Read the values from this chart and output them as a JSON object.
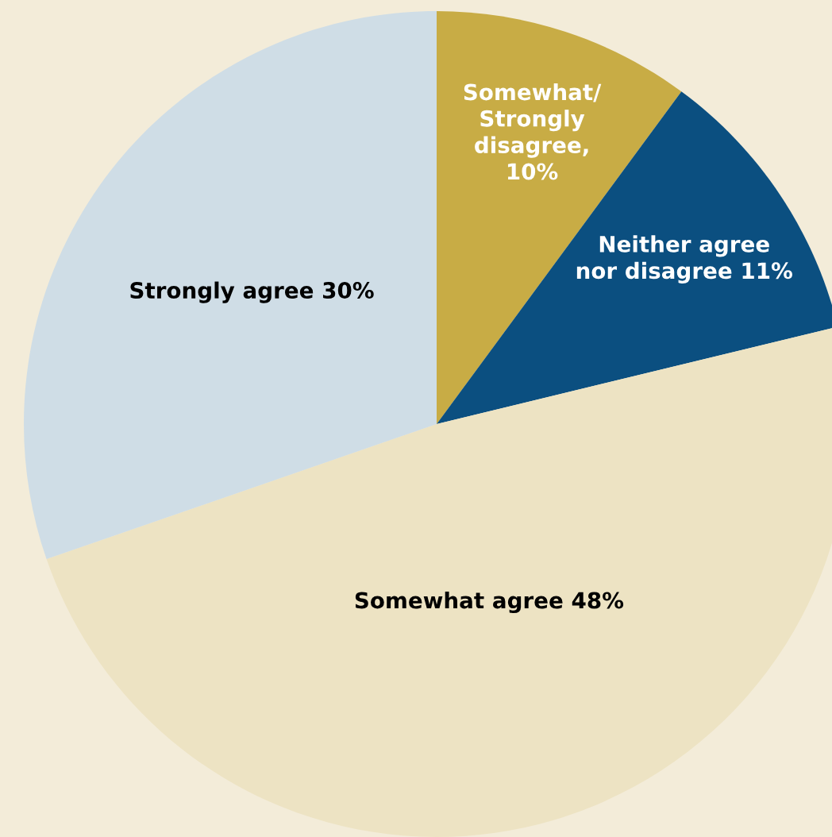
{
  "chart_data": {
    "type": "pie",
    "categories": [
      "Somewhat/\nStrongly\ndisagree,\n10%",
      "Neither agree\nnor disagree 11%",
      "Somewhat agree 48%",
      "Strongly agree 30%"
    ],
    "values": [
      10,
      11,
      48,
      30
    ],
    "colors": [
      "#c8ac45",
      "#0b4f80",
      "#ede3c3",
      "#cfdde6"
    ]
  }
}
